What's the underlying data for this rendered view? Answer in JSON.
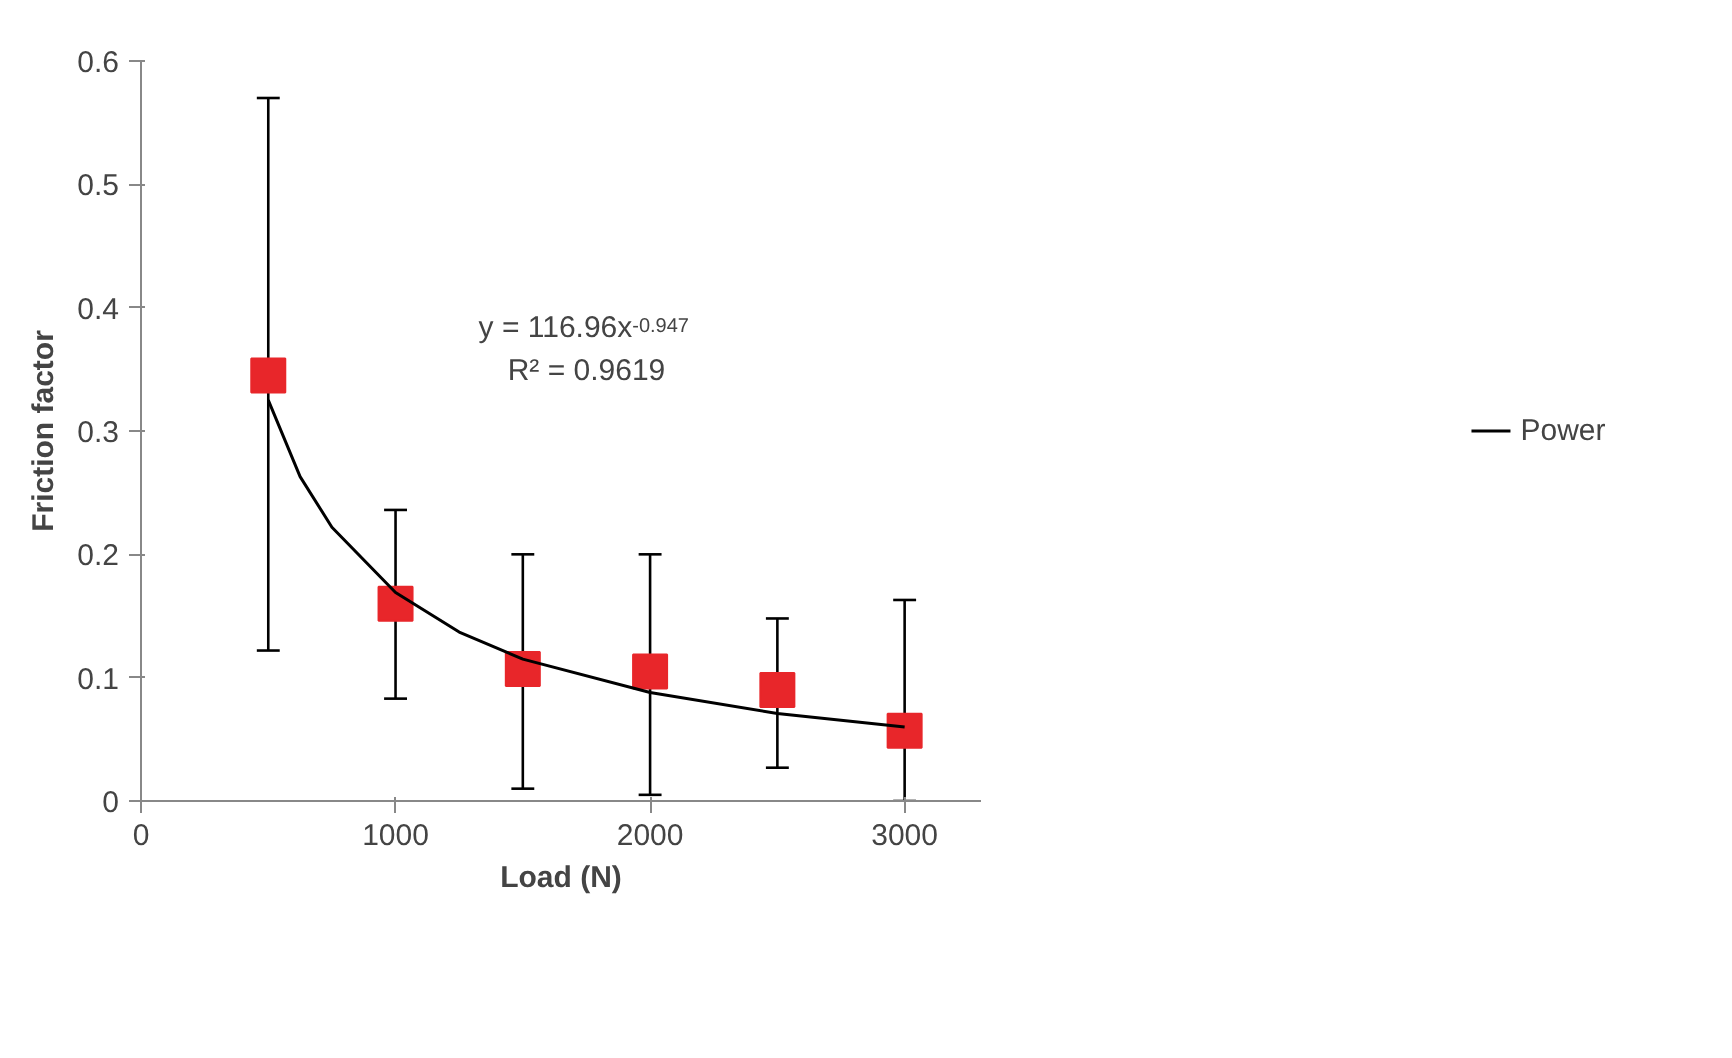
{
  "chart_data": {
    "type": "scatter",
    "xlabel": "Load (N)",
    "ylabel": "Friction factor",
    "xlim": [
      0,
      3300
    ],
    "xticks": [
      0,
      1000,
      2000,
      3000
    ],
    "ylim": [
      0,
      0.6
    ],
    "yticks": [
      0,
      0.1,
      0.2,
      0.3,
      0.4,
      0.5,
      0.6
    ],
    "grid": false,
    "legend": "right",
    "annotations": [
      "y = 116.96x$^{-0.947}$",
      "R² = 0.9619"
    ],
    "series": [
      {
        "marker": "square",
        "color": "#e8262a",
        "x": [
          500,
          1000,
          1500,
          2000,
          2500,
          3000
        ],
        "values": [
          0.345,
          0.16,
          0.107,
          0.105,
          0.09,
          0.057
        ],
        "errors": [
          [
            0.122,
            0.57
          ],
          [
            0.083,
            0.236
          ],
          [
            0.01,
            0.2
          ],
          [
            0.005,
            0.2
          ],
          [
            0.027,
            0.148
          ],
          [
            0,
            0.163
          ]
        ]
      },
      {
        "type": "line",
        "name": "Power",
        "marker": "none",
        "color": "#000000",
        "line_style": "solid",
        "x": [
          500,
          625,
          750,
          1000,
          1250,
          1500,
          2000,
          2500,
          3000
        ],
        "values": [
          0.325,
          0.263,
          0.222,
          0.169,
          0.137,
          0.115,
          0.088,
          0.071,
          0.06
        ]
      }
    ]
  }
}
